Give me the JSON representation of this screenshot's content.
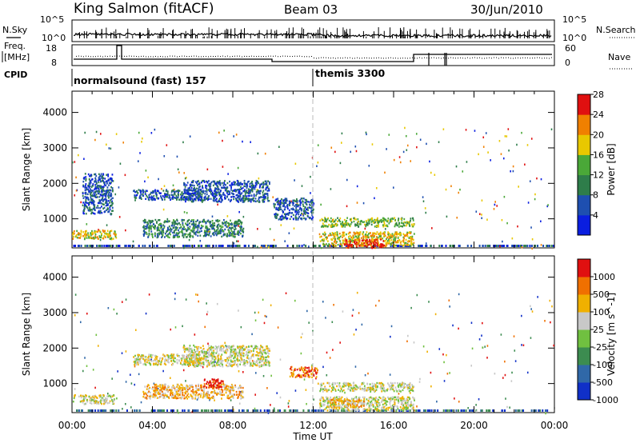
{
  "header": {
    "station": "King Salmon (fitACF)",
    "beam": "Beam 03",
    "date": "30/Jun/2010"
  },
  "noise_panel": {
    "left_label": "N.Sky",
    "right_label": "N.Search",
    "left_ticks": [
      "10^5",
      "10^0"
    ],
    "right_ticks": [
      "10^5",
      "10^0"
    ]
  },
  "freq_panel": {
    "left_label_1": "Freq.",
    "left_label_2": "[MHz]",
    "right_label": "Nave",
    "left_ticks": [
      "18",
      "8"
    ],
    "right_ticks": [
      "60",
      "0"
    ]
  },
  "cpid_panel": {
    "label": "CPID",
    "programs": [
      {
        "name": "normalsound (fast) 157",
        "start_hour": 0
      },
      {
        "name": "themis 3300",
        "start_hour": 12
      }
    ]
  },
  "x_axis": {
    "title": "Time UT",
    "ticks": [
      "00:00",
      "04:00",
      "08:00",
      "12:00",
      "16:00",
      "20:00",
      "00:00"
    ]
  },
  "chart_data": [
    {
      "type": "heatmap",
      "quantity": "Power",
      "ylabel": "Slant Range [km]",
      "yticks": [
        1000,
        2000,
        3000,
        4000
      ],
      "ylim": [
        180,
        4600
      ],
      "xlim": [
        0,
        24
      ],
      "colorbar": {
        "label": "Power [dB]",
        "ticks": [
          "4",
          "8",
          "12",
          "16",
          "20",
          "24",
          "28"
        ],
        "colors": [
          "#0a1ee0",
          "#1e4fb0",
          "#2e7d4a",
          "#4aa838",
          "#e8c800",
          "#f08000",
          "#e01010"
        ]
      },
      "regions": [
        {
          "t": [
            0.0,
            2.2
          ],
          "r": [
            450,
            700
          ],
          "level": 4
        },
        {
          "t": [
            0.5,
            2.0
          ],
          "r": [
            1150,
            2300
          ],
          "level": 1
        },
        {
          "t": [
            3.0,
            6.5
          ],
          "r": [
            1550,
            1850
          ],
          "level": 1
        },
        {
          "t": [
            5.5,
            9.8
          ],
          "r": [
            1500,
            2100
          ],
          "level": 1
        },
        {
          "t": [
            3.5,
            8.5
          ],
          "r": [
            500,
            1000
          ],
          "level": 2
        },
        {
          "t": [
            10.0,
            12.0
          ],
          "r": [
            1000,
            1600
          ],
          "level": 1
        },
        {
          "t": [
            12.3,
            17.0
          ],
          "r": [
            800,
            1050
          ],
          "level": 3
        },
        {
          "t": [
            12.3,
            17.0
          ],
          "r": [
            250,
            650
          ],
          "level": 4
        },
        {
          "t": [
            13.5,
            15.5
          ],
          "r": [
            200,
            450
          ],
          "level": 6
        }
      ]
    },
    {
      "type": "heatmap",
      "quantity": "Velocity",
      "ylabel": "Slant Range [km]",
      "yticks": [
        1000,
        2000,
        3000,
        4000
      ],
      "ylim": [
        180,
        4600
      ],
      "xlim": [
        0,
        24
      ],
      "colorbar": {
        "label": "Velocity [m s^-1]",
        "ticks": [
          "1000",
          "500",
          "100",
          "25",
          "-25",
          "-100",
          "-500",
          "-1000"
        ],
        "colors": [
          "#1030c8",
          "#3068a8",
          "#3c8c50",
          "#70c040",
          "#c8c8c8",
          "#f0b000",
          "#f07000",
          "#e01010"
        ]
      },
      "regions": [
        {
          "t": [
            0.0,
            2.2
          ],
          "r": [
            450,
            700
          ],
          "level": 4
        },
        {
          "t": [
            3.0,
            6.5
          ],
          "r": [
            1550,
            1850
          ],
          "level": 4
        },
        {
          "t": [
            5.5,
            9.8
          ],
          "r": [
            1500,
            2100
          ],
          "level": 4
        },
        {
          "t": [
            3.5,
            8.5
          ],
          "r": [
            600,
            1000
          ],
          "level": 5
        },
        {
          "t": [
            6.5,
            7.5
          ],
          "r": [
            900,
            1150
          ],
          "level": 7
        },
        {
          "t": [
            10.8,
            12.2
          ],
          "r": [
            1200,
            1500
          ],
          "level": 6
        },
        {
          "t": [
            12.3,
            17.0
          ],
          "r": [
            800,
            1050
          ],
          "level": 4
        },
        {
          "t": [
            12.3,
            17.0
          ],
          "r": [
            250,
            650
          ],
          "level": 4
        },
        {
          "t": [
            12.8,
            14.5
          ],
          "r": [
            350,
            600
          ],
          "level": 5
        }
      ]
    }
  ]
}
